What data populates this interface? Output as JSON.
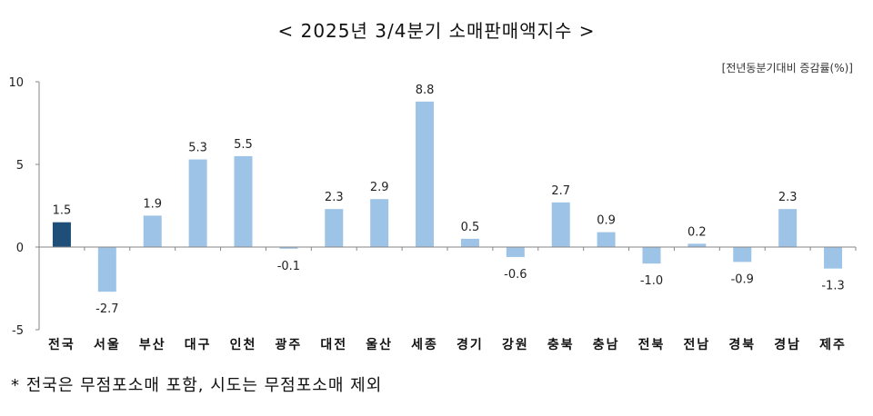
{
  "title": "< 2025년 3/4분기 소매판매액지수 >",
  "unit_label": "[전년동분기대비 증감률(%)]",
  "footnote": "* 전국은 무점포소매 포함, 시도는 무점포소매 제외",
  "colors": {
    "highlight": "#1f4e79",
    "default": "#9dc3e6",
    "axis": "#868686"
  },
  "chart_data": {
    "type": "bar",
    "title": "< 2025년 3/4분기 소매판매액지수 >",
    "xlabel": "",
    "ylabel": "전년동분기대비 증감률(%)",
    "ylim": [
      -5,
      10
    ],
    "yticks": [
      10,
      5,
      0,
      -5
    ],
    "grid": false,
    "legend": null,
    "categories": [
      "전국",
      "서울",
      "부산",
      "대구",
      "인천",
      "광주",
      "대전",
      "울산",
      "세종",
      "경기",
      "강원",
      "충북",
      "충남",
      "전북",
      "전남",
      "경북",
      "경남",
      "제주"
    ],
    "values": [
      1.5,
      -2.7,
      1.9,
      5.3,
      5.5,
      -0.1,
      2.3,
      2.9,
      8.8,
      0.5,
      -0.6,
      2.7,
      0.9,
      -1.0,
      0.2,
      -0.9,
      2.3,
      -1.3
    ],
    "value_labels": [
      "1.5",
      "-2.7",
      "1.9",
      "5.3",
      "5.5",
      "-0.1",
      "2.3",
      "2.9",
      "8.8",
      "0.5",
      "-0.6",
      "2.7",
      "0.9",
      "-1.0",
      "0.2",
      "-0.9",
      "2.3",
      "-1.3"
    ],
    "highlight_index": 0,
    "annotations": [
      "* 전국은 무점포소매 포함, 시도는 무점포소매 제외"
    ]
  }
}
